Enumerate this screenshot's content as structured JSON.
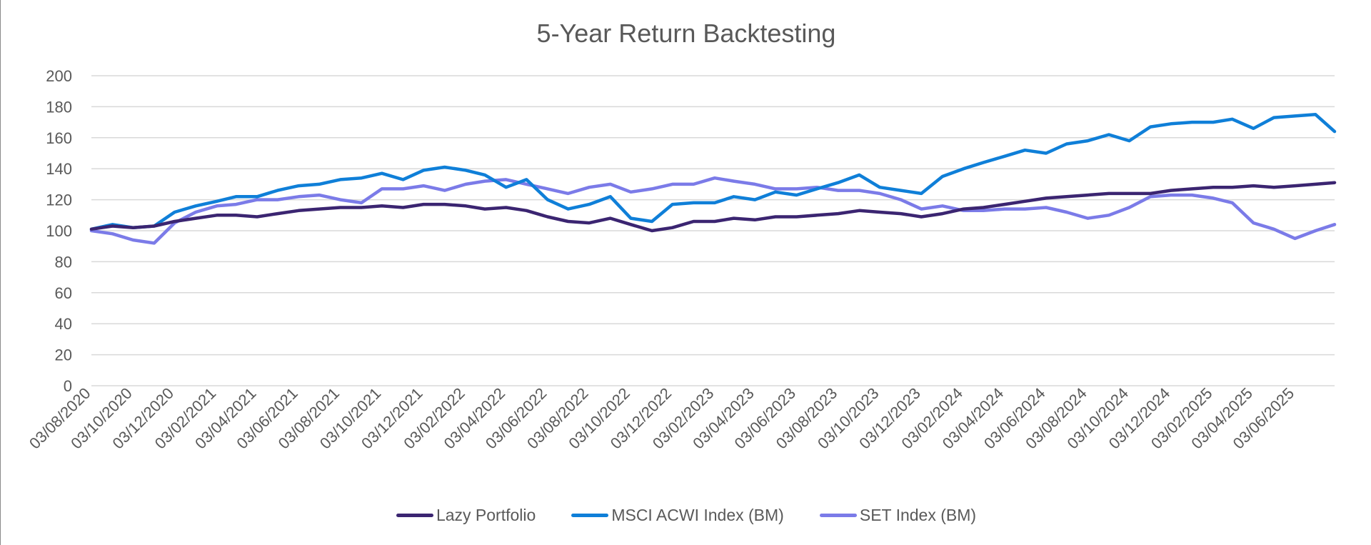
{
  "chart_data": {
    "type": "line",
    "title": "5-Year Return Backtesting",
    "xlabel": "",
    "ylabel": "",
    "ylim": [
      0,
      200
    ],
    "yticks": [
      0,
      20,
      40,
      60,
      80,
      100,
      120,
      140,
      160,
      180,
      200
    ],
    "xlim": [
      "2020-08-03",
      "2025-07-31"
    ],
    "xtick_labels": [
      "03/08/2020",
      "03/10/2020",
      "03/12/2020",
      "03/02/2021",
      "03/04/2021",
      "03/06/2021",
      "03/08/2021",
      "03/10/2021",
      "03/12/2021",
      "03/02/2022",
      "03/04/2022",
      "03/06/2022",
      "03/08/2022",
      "03/10/2022",
      "03/12/2022",
      "03/02/2023",
      "03/04/2023",
      "03/06/2023",
      "03/08/2023",
      "03/10/2023",
      "03/12/2023",
      "03/02/2024",
      "03/04/2024",
      "03/06/2024",
      "03/08/2024",
      "03/10/2024",
      "03/12/2024",
      "03/02/2025",
      "03/04/2025",
      "03/06/2025"
    ],
    "grid": true,
    "legend_position": "bottom",
    "x": [
      "2020-08-03",
      "2020-09-03",
      "2020-10-03",
      "2020-11-03",
      "2020-12-03",
      "2021-01-03",
      "2021-02-03",
      "2021-03-03",
      "2021-04-03",
      "2021-05-03",
      "2021-06-03",
      "2021-07-03",
      "2021-08-03",
      "2021-09-03",
      "2021-10-03",
      "2021-11-03",
      "2021-12-03",
      "2022-01-03",
      "2022-02-03",
      "2022-03-03",
      "2022-04-03",
      "2022-05-03",
      "2022-06-03",
      "2022-07-03",
      "2022-08-03",
      "2022-09-03",
      "2022-10-03",
      "2022-11-03",
      "2022-12-03",
      "2023-01-03",
      "2023-02-03",
      "2023-03-03",
      "2023-04-03",
      "2023-05-03",
      "2023-06-03",
      "2023-07-03",
      "2023-08-03",
      "2023-09-03",
      "2023-10-03",
      "2023-11-03",
      "2023-12-03",
      "2024-01-03",
      "2024-02-03",
      "2024-03-03",
      "2024-04-03",
      "2024-05-03",
      "2024-06-03",
      "2024-07-03",
      "2024-08-03",
      "2024-09-03",
      "2024-10-03",
      "2024-11-03",
      "2024-12-03",
      "2025-01-03",
      "2025-02-03",
      "2025-03-03",
      "2025-04-03",
      "2025-05-03",
      "2025-06-03",
      "2025-07-03",
      "2025-07-31"
    ],
    "series": [
      {
        "name": "Lazy Portfolio",
        "color": "#3b2571",
        "values": [
          101,
          103,
          102,
          103,
          106,
          108,
          110,
          110,
          109,
          111,
          113,
          114,
          115,
          115,
          116,
          115,
          117,
          117,
          116,
          114,
          115,
          113,
          109,
          106,
          105,
          108,
          104,
          100,
          102,
          106,
          106,
          108,
          107,
          109,
          109,
          110,
          111,
          113,
          112,
          111,
          109,
          111,
          114,
          115,
          117,
          119,
          121,
          122,
          123,
          124,
          124,
          124,
          126,
          127,
          128,
          128,
          129,
          128,
          129,
          130,
          131
        ]
      },
      {
        "name": "MSCI ACWI Index (BM)",
        "color": "#0f7fd8",
        "values": [
          101,
          104,
          102,
          103,
          112,
          116,
          119,
          122,
          122,
          126,
          129,
          130,
          133,
          134,
          137,
          133,
          139,
          141,
          139,
          136,
          128,
          133,
          120,
          114,
          117,
          122,
          108,
          106,
          117,
          118,
          118,
          122,
          120,
          125,
          123,
          127,
          131,
          136,
          128,
          126,
          124,
          135,
          140,
          144,
          148,
          152,
          150,
          156,
          158,
          162,
          158,
          167,
          169,
          170,
          170,
          172,
          166,
          173,
          174,
          175,
          164
        ]
      },
      {
        "name": "SET Index (BM)",
        "color": "#7b7be8",
        "values": [
          100,
          98,
          94,
          92,
          105,
          112,
          116,
          117,
          120,
          120,
          122,
          123,
          120,
          118,
          127,
          127,
          129,
          126,
          130,
          132,
          133,
          130,
          127,
          124,
          128,
          130,
          125,
          127,
          130,
          130,
          134,
          132,
          130,
          127,
          127,
          128,
          126,
          126,
          124,
          120,
          114,
          116,
          113,
          113,
          114,
          114,
          115,
          112,
          108,
          110,
          115,
          122,
          123,
          123,
          121,
          118,
          105,
          101,
          95,
          100,
          104
        ]
      }
    ]
  }
}
